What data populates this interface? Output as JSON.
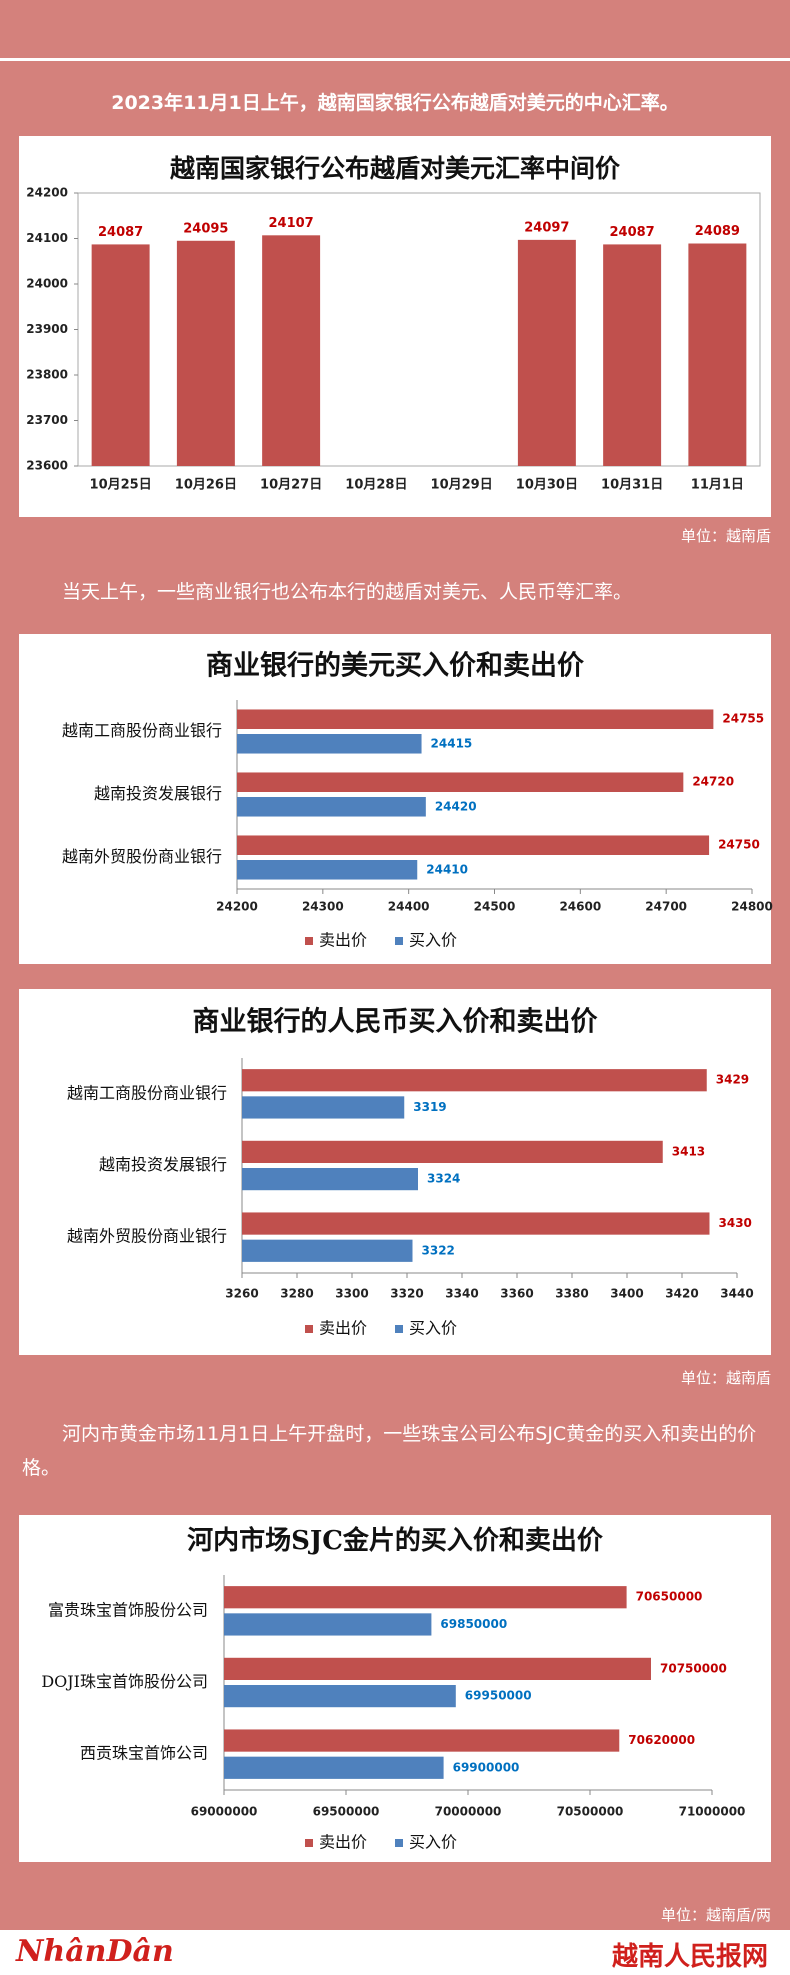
{
  "paragraphs": [
    "2023年11月1日上午，越南国家银行公布越盾对美元的中心汇率。",
    "当天上午，一些商业银行也公布本行的越盾对美元、人民币等汇率。",
    "河内市黄金市场11月1日上午开盘时，一些珠宝公司公布SJC黄金的买入和卖出的价格。"
  ],
  "units": [
    "单位：越南盾",
    "单位：越南盾",
    "单位：越南盾/两"
  ],
  "footer": {
    "logo_left": "NhânDân",
    "logo_right": "越南人民报网"
  },
  "chart_data": [
    {
      "type": "bar",
      "title": "越南国家银行公布越盾对美元汇率中间价",
      "categories": [
        "10月25日",
        "10月26日",
        "10月27日",
        "10月28日",
        "10月29日",
        "10月30日",
        "10月31日",
        "11月1日"
      ],
      "values": [
        24087,
        24095,
        24107,
        null,
        null,
        24097,
        24087,
        24089
      ],
      "color": "#c0504d",
      "label_color": "#c00000",
      "ylim": [
        23600,
        24200
      ],
      "yticks": [
        23600,
        23700,
        23800,
        23900,
        24000,
        24100,
        24200
      ],
      "grid": false
    },
    {
      "type": "barh",
      "title": "商业银行的美元买入价和卖出价",
      "categories": [
        "越南工商股份商业银行",
        "越南投资发展银行",
        "越南外贸股份商业银行"
      ],
      "series": [
        {
          "name": "卖出价",
          "color": "#c0504d",
          "label_color": "#c00000",
          "values": [
            24755,
            24720,
            24750
          ]
        },
        {
          "name": "买入价",
          "color": "#4f81bd",
          "label_color": "#0070c0",
          "values": [
            24415,
            24420,
            24410
          ]
        }
      ],
      "xlim": [
        24200,
        24800
      ],
      "xticks": [
        24200,
        24300,
        24400,
        24500,
        24600,
        24700,
        24800
      ],
      "grid": false,
      "legend": "bottom"
    },
    {
      "type": "barh",
      "title": "商业银行的人民币买入价和卖出价",
      "categories": [
        "越南工商股份商业银行",
        "越南投资发展银行",
        "越南外贸股份商业银行"
      ],
      "series": [
        {
          "name": "卖出价",
          "color": "#c0504d",
          "label_color": "#c00000",
          "values": [
            3429,
            3413,
            3430
          ]
        },
        {
          "name": "买入价",
          "color": "#4f81bd",
          "label_color": "#0070c0",
          "values": [
            3319,
            3324,
            3322
          ]
        }
      ],
      "xlim": [
        3260,
        3440
      ],
      "xticks": [
        3260,
        3280,
        3300,
        3320,
        3340,
        3360,
        3380,
        3400,
        3420,
        3440
      ],
      "grid": false,
      "legend": "bottom"
    },
    {
      "type": "barh",
      "title": "河内市场SJC金片的买入价和卖出价",
      "categories": [
        "富贵珠宝首饰股份公司",
        "DOJI珠宝首饰股份公司",
        "西贡珠宝首饰公司"
      ],
      "series": [
        {
          "name": "卖出价",
          "color": "#c0504d",
          "label_color": "#c00000",
          "values": [
            70650000,
            70750000,
            70620000
          ]
        },
        {
          "name": "买入价",
          "color": "#4f81bd",
          "label_color": "#0070c0",
          "values": [
            69850000,
            69950000,
            69900000
          ]
        }
      ],
      "xlim": [
        69000000,
        71000000
      ],
      "xticks": [
        69000000,
        69500000,
        70000000,
        70500000,
        71000000
      ],
      "grid": false,
      "legend": "bottom"
    }
  ]
}
